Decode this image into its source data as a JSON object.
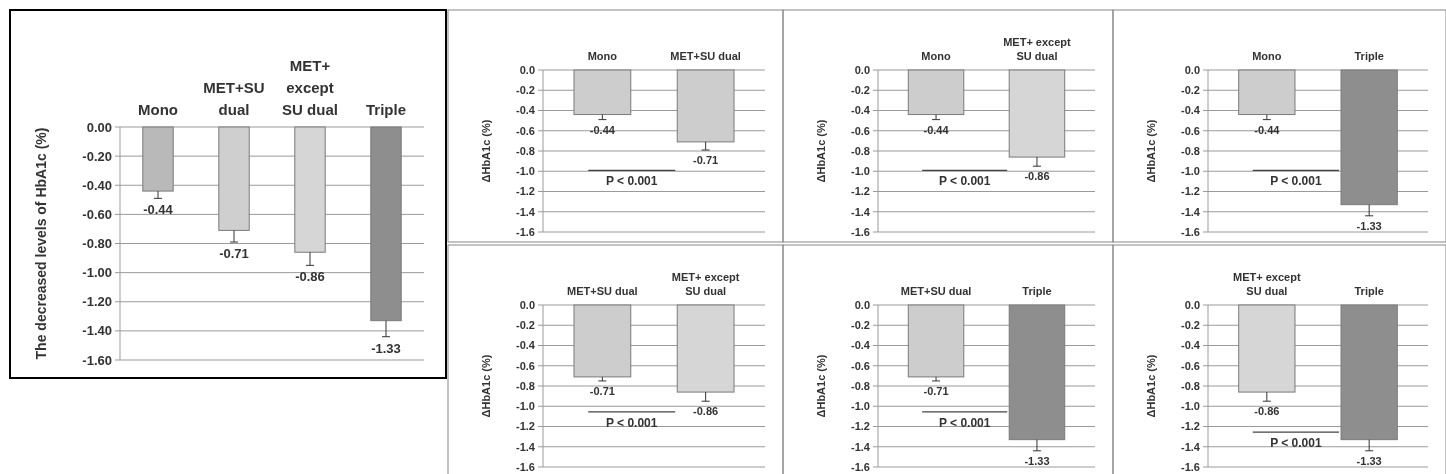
{
  "chart_data": [
    {
      "type": "bar",
      "ylabel": "The decreased levels of HbA1c (%)",
      "categories": [
        "Mono",
        "MET+SU dual",
        "MET+ except SU dual",
        "Triple"
      ],
      "values": [
        -0.44,
        -0.71,
        -0.86,
        -1.33
      ],
      "colors": [
        "#b9b9b9",
        "#cfcfcf",
        "#d6d6d6",
        "#8e8e8e"
      ],
      "errors": [
        [
          -0.49,
          -0.44
        ],
        [
          -0.79,
          -0.71
        ],
        [
          -0.95,
          -0.86
        ],
        [
          -1.44,
          -1.33
        ]
      ],
      "data_labels": true,
      "ylim": [
        -1.6,
        0
      ],
      "yticks": [
        {
          "value": 0,
          "label": "0.00"
        },
        {
          "value": -0.2,
          "label": "-0.20"
        },
        {
          "value": -0.4,
          "label": "-0.40"
        },
        {
          "value": -0.6,
          "label": "-0.60"
        },
        {
          "value": -0.8,
          "label": "-0.80"
        },
        {
          "value": -1.0,
          "label": "-1.00"
        },
        {
          "value": -1.2,
          "label": "-1.20"
        },
        {
          "value": -1.4,
          "label": "-1.40"
        },
        {
          "value": -1.6,
          "label": "-1.60"
        }
      ],
      "grid": "y"
    },
    {
      "type": "bar",
      "ylabel": "ΔHbA1c (%)",
      "categories": [
        "Mono",
        "MET+SU dual"
      ],
      "values": [
        -0.44,
        -0.71
      ],
      "colors": [
        "#cdcdcd",
        "#cdcdcd"
      ],
      "errors": [
        [
          -0.49,
          -0.44
        ],
        [
          -0.79,
          -0.71
        ]
      ],
      "data_labels": true,
      "ylim": [
        -1.6,
        0
      ],
      "yticks": [
        {
          "value": 0,
          "label": "0.0"
        },
        {
          "value": -0.2,
          "label": "-0.2"
        },
        {
          "value": -0.4,
          "label": "-0.4"
        },
        {
          "value": -0.6,
          "label": "-0.6"
        },
        {
          "value": -0.8,
          "label": "-0.8"
        },
        {
          "value": -1.0,
          "label": "-1.0"
        },
        {
          "value": -1.2,
          "label": "-1.2"
        },
        {
          "value": -1.4,
          "label": "-1.4"
        },
        {
          "value": -1.6,
          "label": "-1.6"
        }
      ],
      "grid": "y",
      "annotations": [
        "P < 0.001"
      ]
    },
    {
      "type": "bar",
      "ylabel": "ΔHbA1c (%)",
      "categories": [
        "Mono",
        "MET+ except SU dual"
      ],
      "values": [
        -0.44,
        -0.86
      ],
      "colors": [
        "#cdcdcd",
        "#d6d6d6"
      ],
      "errors": [
        [
          -0.49,
          -0.44
        ],
        [
          -0.95,
          -0.86
        ]
      ],
      "data_labels": true,
      "ylim": [
        -1.6,
        0
      ],
      "yticks": [
        {
          "value": 0,
          "label": "0.0"
        },
        {
          "value": -0.2,
          "label": "-0.2"
        },
        {
          "value": -0.4,
          "label": "-0.4"
        },
        {
          "value": -0.6,
          "label": "-0.6"
        },
        {
          "value": -0.8,
          "label": "-0.8"
        },
        {
          "value": -1.0,
          "label": "-1.0"
        },
        {
          "value": -1.2,
          "label": "-1.2"
        },
        {
          "value": -1.4,
          "label": "-1.4"
        },
        {
          "value": -1.6,
          "label": "-1.6"
        }
      ],
      "grid": "y",
      "annotations": [
        "P < 0.001"
      ]
    },
    {
      "type": "bar",
      "ylabel": "ΔHbA1c (%)",
      "categories": [
        "Mono",
        "Triple"
      ],
      "values": [
        -0.44,
        -1.33
      ],
      "colors": [
        "#cdcdcd",
        "#8e8e8e"
      ],
      "errors": [
        [
          -0.49,
          -0.44
        ],
        [
          -1.44,
          -1.33
        ]
      ],
      "data_labels": true,
      "ylim": [
        -1.6,
        0
      ],
      "yticks": [
        {
          "value": 0,
          "label": "0.0"
        },
        {
          "value": -0.2,
          "label": "-0.2"
        },
        {
          "value": -0.4,
          "label": "-0.4"
        },
        {
          "value": -0.6,
          "label": "-0.6"
        },
        {
          "value": -0.8,
          "label": "-0.8"
        },
        {
          "value": -1.0,
          "label": "-1.0"
        },
        {
          "value": -1.2,
          "label": "-1.2"
        },
        {
          "value": -1.4,
          "label": "-1.4"
        },
        {
          "value": -1.6,
          "label": "-1.6"
        }
      ],
      "grid": "y",
      "annotations": [
        "P < 0.001"
      ]
    },
    {
      "type": "bar",
      "ylabel": "ΔHbA1c (%)",
      "categories": [
        "MET+SU dual",
        "MET+ except SU dual"
      ],
      "values": [
        -0.71,
        -0.86
      ],
      "colors": [
        "#cdcdcd",
        "#d6d6d6"
      ],
      "errors": [
        [
          -0.75,
          -0.71
        ],
        [
          -0.95,
          -0.86
        ]
      ],
      "data_labels": true,
      "ylim": [
        -1.6,
        0
      ],
      "yticks": [
        {
          "value": 0,
          "label": "0.0"
        },
        {
          "value": -0.2,
          "label": "-0.2"
        },
        {
          "value": -0.4,
          "label": "-0.4"
        },
        {
          "value": -0.6,
          "label": "-0.6"
        },
        {
          "value": -0.8,
          "label": "-0.8"
        },
        {
          "value": -1.0,
          "label": "-1.0"
        },
        {
          "value": -1.2,
          "label": "-1.2"
        },
        {
          "value": -1.4,
          "label": "-1.4"
        },
        {
          "value": -1.6,
          "label": "-1.6"
        }
      ],
      "grid": "y",
      "annotations": [
        "P < 0.001"
      ]
    },
    {
      "type": "bar",
      "ylabel": "ΔHbA1c (%)",
      "categories": [
        "MET+SU dual",
        "Triple"
      ],
      "values": [
        -0.71,
        -1.33
      ],
      "colors": [
        "#cdcdcd",
        "#8e8e8e"
      ],
      "errors": [
        [
          -0.75,
          -0.71
        ],
        [
          -1.44,
          -1.33
        ]
      ],
      "data_labels": true,
      "ylim": [
        -1.6,
        0
      ],
      "yticks": [
        {
          "value": 0,
          "label": "0.0"
        },
        {
          "value": -0.2,
          "label": "-0.2"
        },
        {
          "value": -0.4,
          "label": "-0.4"
        },
        {
          "value": -0.6,
          "label": "-0.6"
        },
        {
          "value": -0.8,
          "label": "-0.8"
        },
        {
          "value": -1.0,
          "label": "-1.0"
        },
        {
          "value": -1.2,
          "label": "-1.2"
        },
        {
          "value": -1.4,
          "label": "-1.4"
        },
        {
          "value": -1.6,
          "label": "-1.6"
        }
      ],
      "grid": "y",
      "annotations": [
        "P < 0.001"
      ]
    },
    {
      "type": "bar",
      "ylabel": "ΔHbA1c (%)",
      "categories": [
        "MET+ except SU dual",
        "Triple"
      ],
      "values": [
        -0.86,
        -1.33
      ],
      "colors": [
        "#d6d6d6",
        "#8e8e8e"
      ],
      "errors": [
        [
          -0.95,
          -0.86
        ],
        [
          -1.44,
          -1.33
        ]
      ],
      "data_labels": true,
      "ylim": [
        -1.6,
        0
      ],
      "yticks": [
        {
          "value": 0,
          "label": "0.0"
        },
        {
          "value": -0.2,
          "label": "-0.2"
        },
        {
          "value": -0.4,
          "label": "-0.4"
        },
        {
          "value": -0.6,
          "label": "-0.6"
        },
        {
          "value": -0.8,
          "label": "-0.8"
        },
        {
          "value": -1.0,
          "label": "-1.0"
        },
        {
          "value": -1.2,
          "label": "-1.2"
        },
        {
          "value": -1.4,
          "label": "-1.4"
        },
        {
          "value": -1.6,
          "label": "-1.6"
        }
      ],
      "grid": "y",
      "annotations": [
        "P < 0.001"
      ]
    }
  ]
}
